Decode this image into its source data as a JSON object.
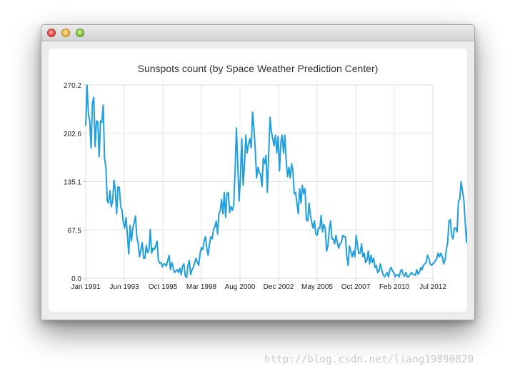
{
  "window": {
    "controls": [
      {
        "name": "close-button",
        "icon": "close-dot-icon",
        "color": "#e0443e"
      },
      {
        "name": "minimize-button",
        "icon": "minimize-dot-icon",
        "color": "#e7b23a"
      },
      {
        "name": "maximize-button",
        "icon": "maximize-dot-icon",
        "color": "#7fc23e"
      }
    ]
  },
  "watermark": "http://blog.csdn.net/liang19890820",
  "chart_data": {
    "type": "line",
    "title": "Sunspots count (by Space Weather Prediction Center)",
    "xlabel": "",
    "ylabel": "",
    "x_ticks": [
      "Jan 1991",
      "Jun 1993",
      "Oct 1995",
      "Mar 1998",
      "Aug 2000",
      "Dec 2002",
      "May 2005",
      "Oct 2007",
      "Feb 2010",
      "Jul 2012"
    ],
    "y_ticks": [
      "0.0",
      "67.5",
      "135.1",
      "202.6",
      "270.2"
    ],
    "ylim": [
      0,
      270.2
    ],
    "xlim": [
      "1991-01",
      "2012-07"
    ],
    "grid": true,
    "legend": "none",
    "line_color": "#209fdf",
    "series": [
      {
        "x_start": "1991-01",
        "x_step_months": 1,
        "values": [
          213,
          270,
          230,
          220,
          182,
          245,
          253,
          184,
          220,
          218,
          170,
          220,
          218,
          242,
          168,
          155,
          108,
          105,
          122,
          100,
          108,
          137,
          123,
          90,
          128,
          127,
          100,
          95,
          77,
          70,
          85,
          60,
          34,
          74,
          52,
          70,
          78,
          87,
          58,
          48,
          30,
          40,
          50,
          28,
          28,
          46,
          36,
          39,
          68,
          35,
          42,
          40,
          45,
          52,
          25,
          21,
          22,
          16,
          20,
          20,
          17,
          25,
          32,
          12,
          22,
          15,
          8,
          10,
          12,
          8,
          14,
          5,
          17,
          20,
          3,
          1,
          18,
          25,
          5,
          12,
          15,
          22,
          28,
          22,
          18,
          35,
          43,
          40,
          52,
          58,
          42,
          32,
          48,
          58,
          55,
          68,
          72,
          80,
          62,
          90,
          95,
          110,
          90,
          120,
          85,
          118,
          120,
          92,
          100,
          95,
          102,
          150,
          210,
          160,
          108,
          142,
          195,
          130,
          158,
          200,
          175,
          188,
          195,
          182,
          232,
          210,
          180,
          140,
          155,
          148,
          145,
          128,
          168,
          160,
          172,
          120,
          175,
          225,
          205,
          195,
          185,
          200,
          175,
          198,
          150,
          190,
          200,
          175,
          200,
          165,
          142,
          155,
          140,
          160,
          150,
          118,
          120,
          105,
          90,
          125,
          105,
          130,
          118,
          125,
          82,
          80,
          105,
          88,
          78,
          70,
          80,
          62,
          60,
          70,
          70,
          88,
          65,
          75,
          70,
          38,
          45,
          68,
          80,
          55,
          55,
          48,
          60,
          50,
          42,
          48,
          50,
          60,
          58,
          58,
          32,
          18,
          45,
          38,
          30,
          38,
          30,
          60,
          45,
          35,
          35,
          48,
          30,
          35,
          22,
          25,
          38,
          20,
          32,
          22,
          28,
          15,
          18,
          8,
          10,
          20,
          12,
          5,
          2,
          5,
          8,
          2,
          12,
          15,
          10,
          8,
          2,
          5,
          5,
          2,
          10,
          12,
          5,
          3,
          8,
          2,
          2,
          5,
          8,
          6,
          5,
          4,
          12,
          6,
          8,
          15,
          12,
          18,
          20,
          22,
          32,
          28,
          20,
          18,
          20,
          22,
          25,
          28,
          35,
          30,
          35,
          30,
          20,
          25,
          40,
          50,
          80,
          82,
          60,
          55,
          70,
          70,
          65,
          108,
          110,
          135,
          122,
          110,
          80,
          50,
          75,
          80,
          100
        ]
      }
    ]
  }
}
